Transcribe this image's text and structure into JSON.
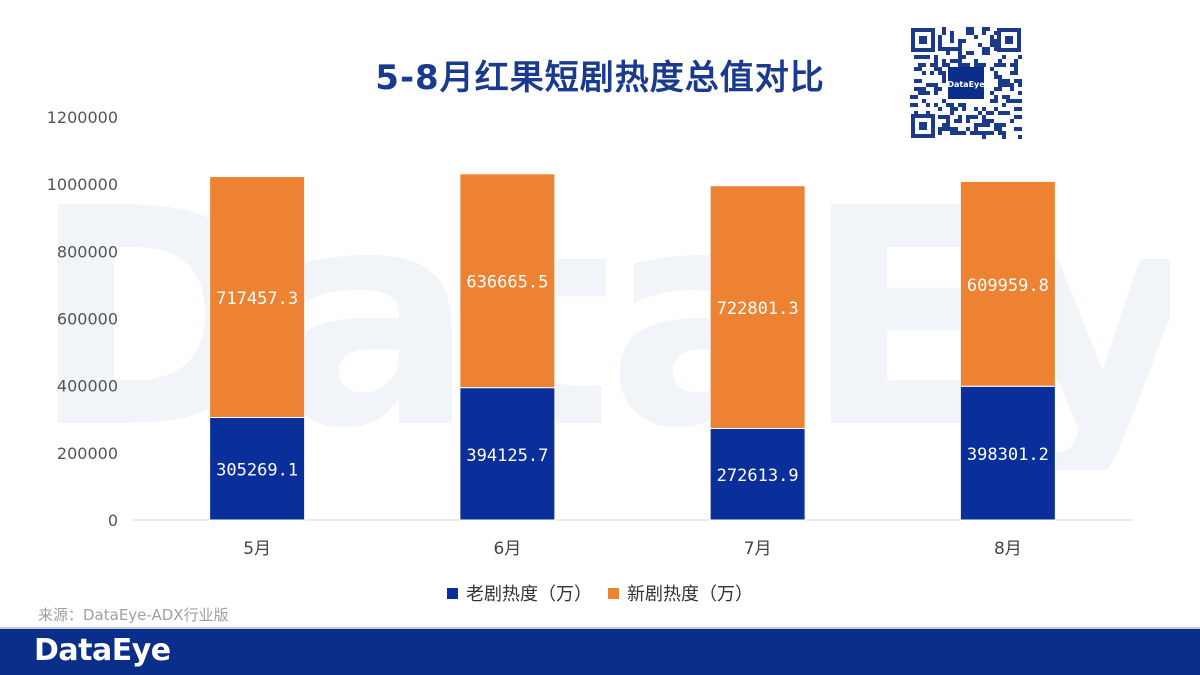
{
  "watermark": "DataEye",
  "qr_label": "DataEye",
  "chart_data": {
    "type": "bar",
    "stacked": true,
    "title": "5-8月红果短剧热度总值对比",
    "categories": [
      "5月",
      "6月",
      "7月",
      "8月"
    ],
    "series": [
      {
        "name": "老剧热度（万）",
        "values": [
          305269.1,
          394125.7,
          272613.9,
          398301.2
        ],
        "color": "#0a2f9a"
      },
      {
        "name": "新剧热度（万）",
        "values": [
          717457.3,
          636665.5,
          722801.3,
          609959.8
        ],
        "color": "#ee8233"
      }
    ],
    "data_labels": [
      [
        "305269.1",
        "394125.7",
        "272613.9",
        "398301.2"
      ],
      [
        "717457.3",
        "636665.5",
        "722801.3",
        "609959.8"
      ]
    ],
    "ylim": [
      0,
      1200000
    ],
    "yticks": [
      "0",
      "200000",
      "400000",
      "600000",
      "800000",
      "1000000",
      "1200000"
    ],
    "grid": false,
    "legend_position": "bottom",
    "xlabel": "",
    "ylabel": ""
  },
  "source": "来源：DataEye-ADX行业版",
  "footer": {
    "logo": "DataEye"
  }
}
